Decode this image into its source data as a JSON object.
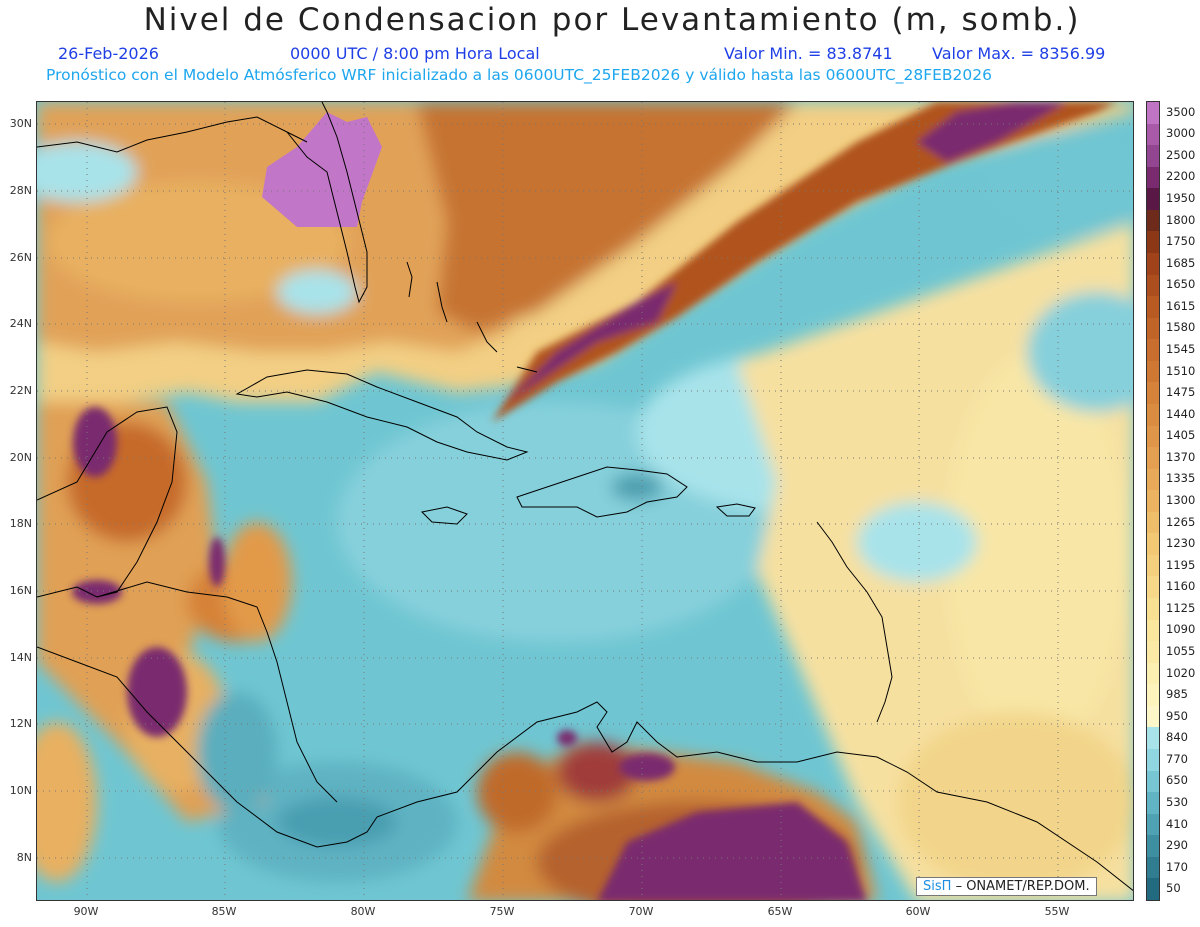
{
  "header": {
    "title": "Nivel de Condensacion por Levantamiento (m, somb.)",
    "date": "26-Feb-2026",
    "time": "0000 UTC / 8:00 pm Hora Local",
    "valor_min": "Valor Min. = 83.8741",
    "valor_max": "Valor Max. = 8356.99",
    "model_line": "Pronóstico con el Modelo Atmósferico WRF inicializado a las 0600UTC_25FEB2026 y válido hasta las  0600UTC_28FEB2026"
  },
  "map": {
    "lat_labels": [
      "30N",
      "28N",
      "26N",
      "24N",
      "22N",
      "20N",
      "18N",
      "16N",
      "14N",
      "12N",
      "10N",
      "8N"
    ],
    "lon_labels": [
      "90W",
      "85W",
      "80W",
      "75W",
      "70W",
      "65W",
      "60W",
      "55W"
    ],
    "colors": {
      "ocean_teal": "#6fc6d2",
      "ocean_light": "#a8e3ea",
      "pale_yellow": "#f8e6a0",
      "orange": "#d98b3a",
      "dark_orange": "#b7561e",
      "purple": "#7a2a6e",
      "lilac": "#c176c8"
    }
  },
  "legend": {
    "levels": [
      "3500",
      "3000",
      "2500",
      "2200",
      "1950",
      "1800",
      "1750",
      "1685",
      "1650",
      "1615",
      "1580",
      "1545",
      "1510",
      "1475",
      "1440",
      "1405",
      "1370",
      "1335",
      "1300",
      "1265",
      "1230",
      "1195",
      "1160",
      "1125",
      "1090",
      "1055",
      "1020",
      "985",
      "950",
      "840",
      "770",
      "650",
      "530",
      "410",
      "290",
      "170",
      "50"
    ],
    "colors": [
      "#c074c4",
      "#a85aa8",
      "#924590",
      "#7a2a6e",
      "#5a1846",
      "#6e2a1a",
      "#8c3716",
      "#a0421a",
      "#ad4e1e",
      "#b85a22",
      "#c16428",
      "#c96e2e",
      "#cf7834",
      "#d5823a",
      "#da8c40",
      "#df9648",
      "#e4a050",
      "#e8aa58",
      "#ecb460",
      "#efbe6a",
      "#f2c874",
      "#f4d07e",
      "#f6d888",
      "#f8e092",
      "#fae69c",
      "#fbeaa6",
      "#fcefb2",
      "#fdf3bc",
      "#fdf6c8",
      "#a8e3ea",
      "#8fd6e0",
      "#76c7d3",
      "#60b4c3",
      "#4ea2b3",
      "#3f8fa3",
      "#307d92",
      "#216a80"
    ]
  },
  "credit": {
    "brand": "SisΠ",
    "text": "– ONAMET/REP.DOM."
  }
}
